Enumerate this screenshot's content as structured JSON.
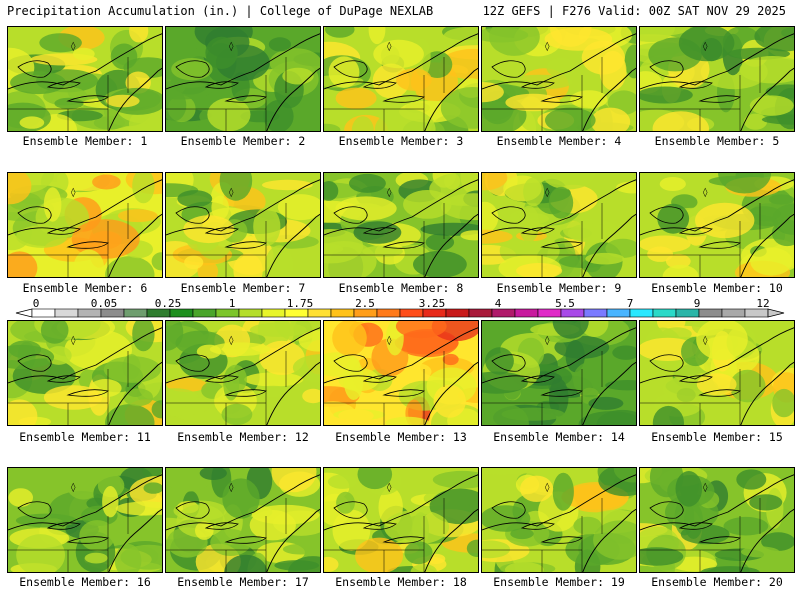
{
  "header": {
    "left": "Precipitation Accumulation (in.) | College of DuPage NEXLAB",
    "right": "12Z GEFS | F276 Valid: 00Z SAT NOV 29 2025"
  },
  "caption_prefix": "Ensemble Member:",
  "members": [
    {
      "num": "1",
      "level": 0.5
    },
    {
      "num": "2",
      "level": 0.3
    },
    {
      "num": "3",
      "level": 0.6
    },
    {
      "num": "4",
      "level": 0.55
    },
    {
      "num": "5",
      "level": 0.45
    },
    {
      "num": "6",
      "level": 0.75
    },
    {
      "num": "7",
      "level": 0.5
    },
    {
      "num": "8",
      "level": 0.35
    },
    {
      "num": "9",
      "level": 0.6
    },
    {
      "num": "10",
      "level": 0.55
    },
    {
      "num": "11",
      "level": 0.55
    },
    {
      "num": "12",
      "level": 0.55
    },
    {
      "num": "13",
      "level": 0.9
    },
    {
      "num": "14",
      "level": 0.25
    },
    {
      "num": "15",
      "level": 0.5
    },
    {
      "num": "16",
      "level": 0.35
    },
    {
      "num": "17",
      "level": 0.35
    },
    {
      "num": "18",
      "level": 0.55
    },
    {
      "num": "19",
      "level": 0.5
    },
    {
      "num": "20",
      "level": 0.35
    }
  ],
  "legend": {
    "labels": [
      "0",
      "0.05",
      "0.25",
      "1",
      "1.75",
      "2.5",
      "3.25",
      "4",
      "5.5",
      "7",
      "9",
      "12"
    ],
    "colors": [
      "#ffffff",
      "#d9d9d9",
      "#b3b3b3",
      "#8c8c8c",
      "#6f9e6f",
      "#2f7d2f",
      "#1e8f1e",
      "#4aa52a",
      "#7cc52a",
      "#b5de2a",
      "#e8f52a",
      "#ffff33",
      "#ffe033",
      "#ffc21a",
      "#ff9e1a",
      "#ff7a1a",
      "#ff4d1a",
      "#e82a1a",
      "#c81a1a",
      "#a81a3a",
      "#b01a6a",
      "#c81a9e",
      "#e02ac8",
      "#a84ae8",
      "#7a7aff",
      "#4ab5ff",
      "#2ae8ff",
      "#2ad9c8",
      "#2ab5a8",
      "#8c8c8c",
      "#a8a8a8",
      "#c8c8c8"
    ]
  }
}
